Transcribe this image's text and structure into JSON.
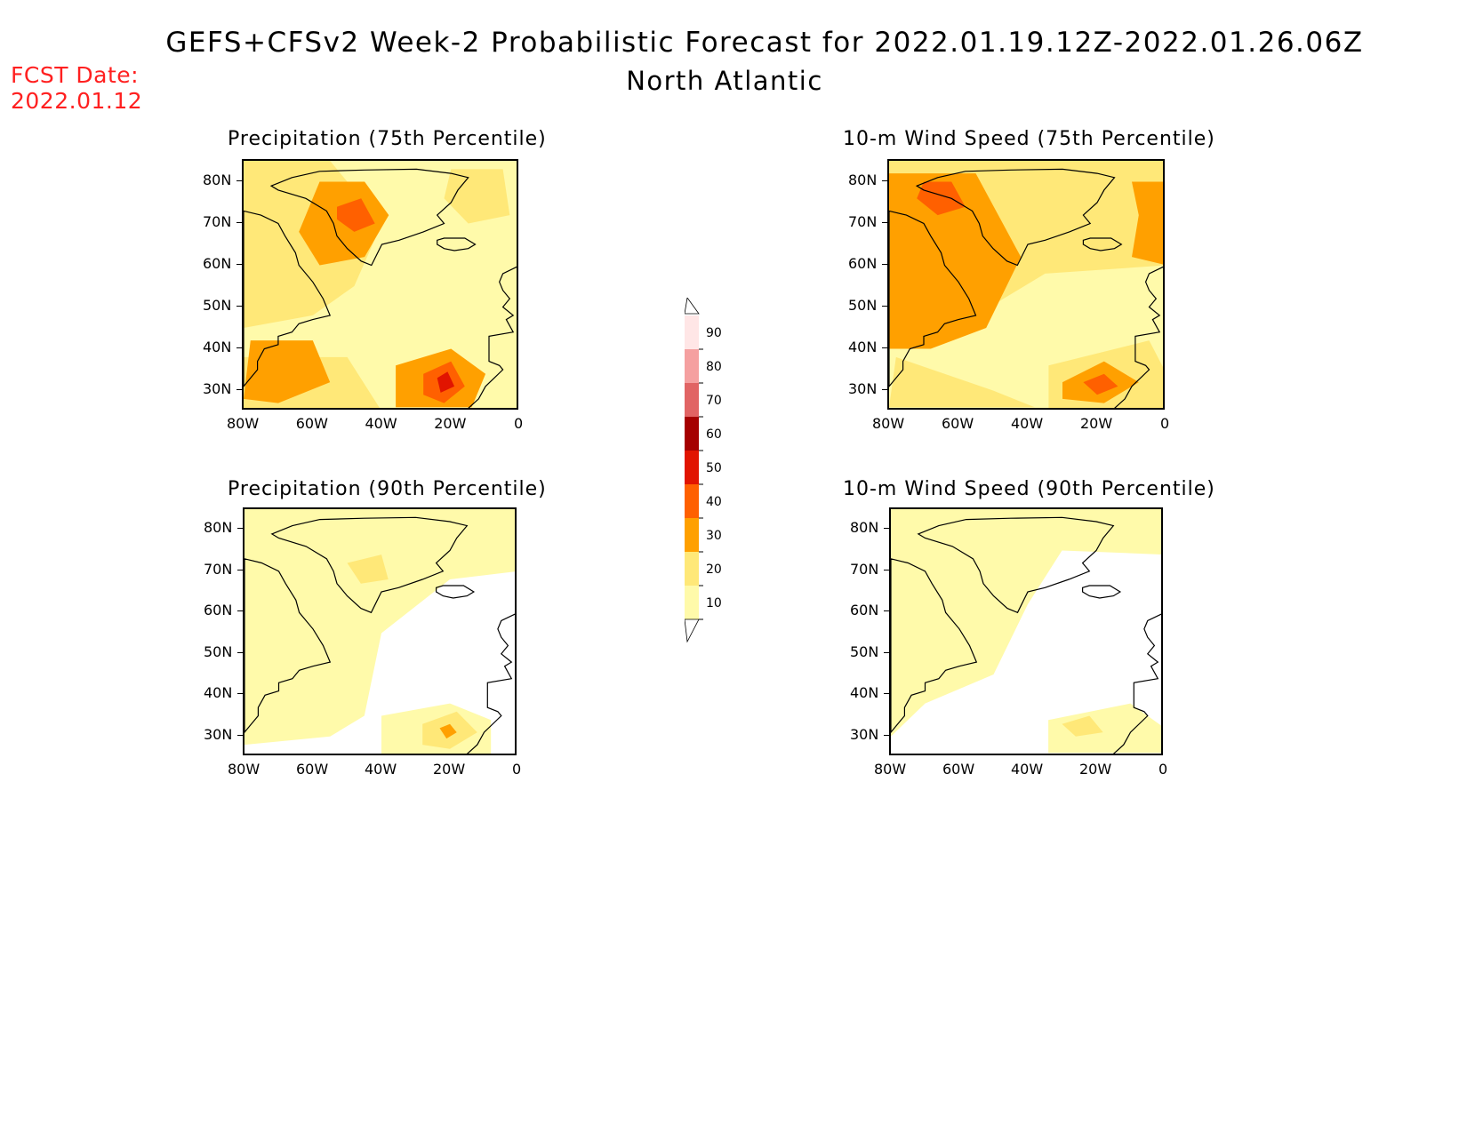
{
  "header": {
    "title": "GEFS+CFSv2 Week-2 Probabilistic Forecast for 2022.01.19.12Z-2022.01.26.06Z",
    "subtitle": "North Atlantic",
    "fcst_label": "FCST Date:",
    "fcst_value": "2022.01.12"
  },
  "axes": {
    "lat_ticks": [
      "80N",
      "70N",
      "60N",
      "50N",
      "40N",
      "30N"
    ],
    "lon_ticks": [
      "80W",
      "60W",
      "40W",
      "20W",
      "0"
    ]
  },
  "panels": [
    {
      "title": "Precipitation (75th Percentile)"
    },
    {
      "title": "10-m Wind Speed (75th Percentile)"
    },
    {
      "title": "Precipitation (90th Percentile)"
    },
    {
      "title": "10-m Wind Speed (90th Percentile)"
    }
  ],
  "colorbar": {
    "labels": [
      "90",
      "80",
      "70",
      "60",
      "50",
      "40",
      "30",
      "20",
      "10"
    ],
    "colors": {
      "10": "#fffaaa",
      "20": "#ffe878",
      "30": "#ffa000",
      "40": "#ff6000",
      "50": "#e11400",
      "60": "#a50000",
      "70": "#e16464",
      "80": "#f5a0a0",
      "90": "#ffe6e6"
    }
  }
}
